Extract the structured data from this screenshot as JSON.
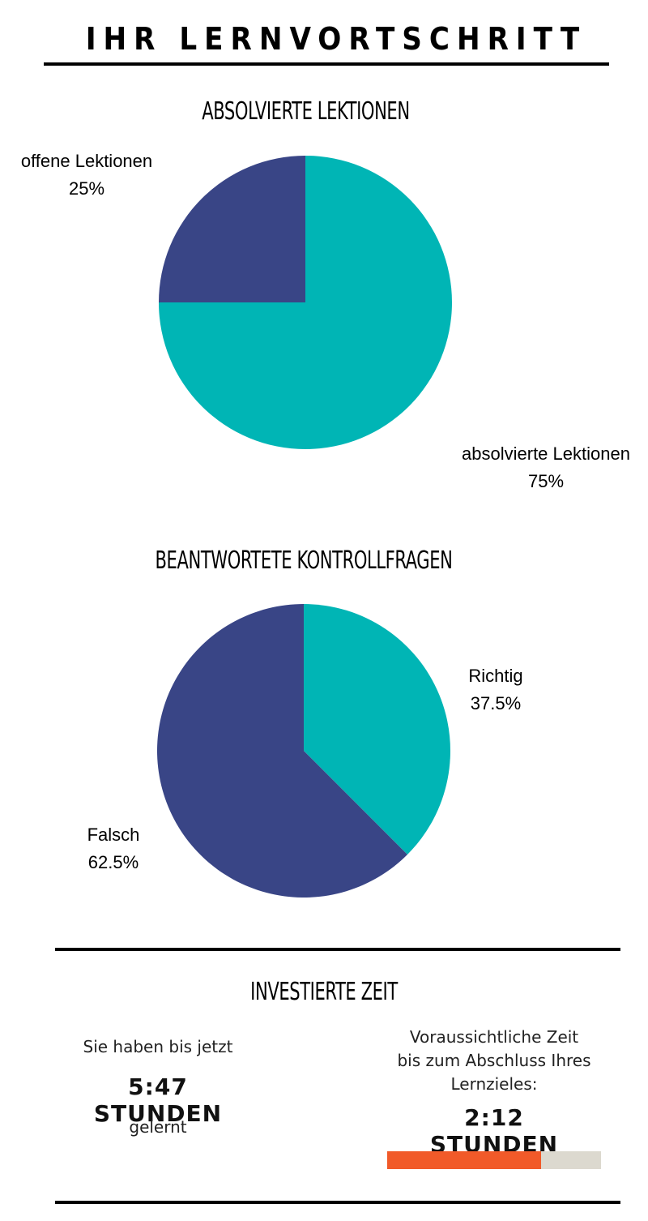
{
  "page_title": "IHR LERNVORTSCHRITT",
  "chart_data": [
    {
      "type": "pie",
      "title": "ABSOLVIERTE LEKTIONEN",
      "slices": [
        {
          "label": "absolvierte Lektionen",
          "value": 75,
          "value_label": "75%",
          "color": "#00b5b5"
        },
        {
          "label": "offene Lektionen",
          "value": 25,
          "value_label": "25%",
          "color": "#394586"
        }
      ]
    },
    {
      "type": "pie",
      "title": "BEANTWORTETE KONTROLLFRAGEN",
      "slices": [
        {
          "label": "Richtig",
          "value": 37.5,
          "value_label": "37.5%",
          "color": "#00b5b5"
        },
        {
          "label": "Falsch",
          "value": 62.5,
          "value_label": "62.5%",
          "color": "#394586"
        }
      ]
    }
  ],
  "time_section": {
    "title": "INVESTIERTE ZEIT",
    "spent": {
      "line1": "Sie haben bis jetzt",
      "value": "5:47 STUNDEN",
      "line2": "gelernt"
    },
    "remaining": {
      "line1": "Voraussichtliche Zeit",
      "line2": "bis zum Abschluss Ihres",
      "line3": "Lernzieles:",
      "value": "2:12 STUNDEN"
    },
    "progress": {
      "fraction": 0.72,
      "fill_color": "#f15a29",
      "track_color": "#dcd9cf"
    }
  }
}
